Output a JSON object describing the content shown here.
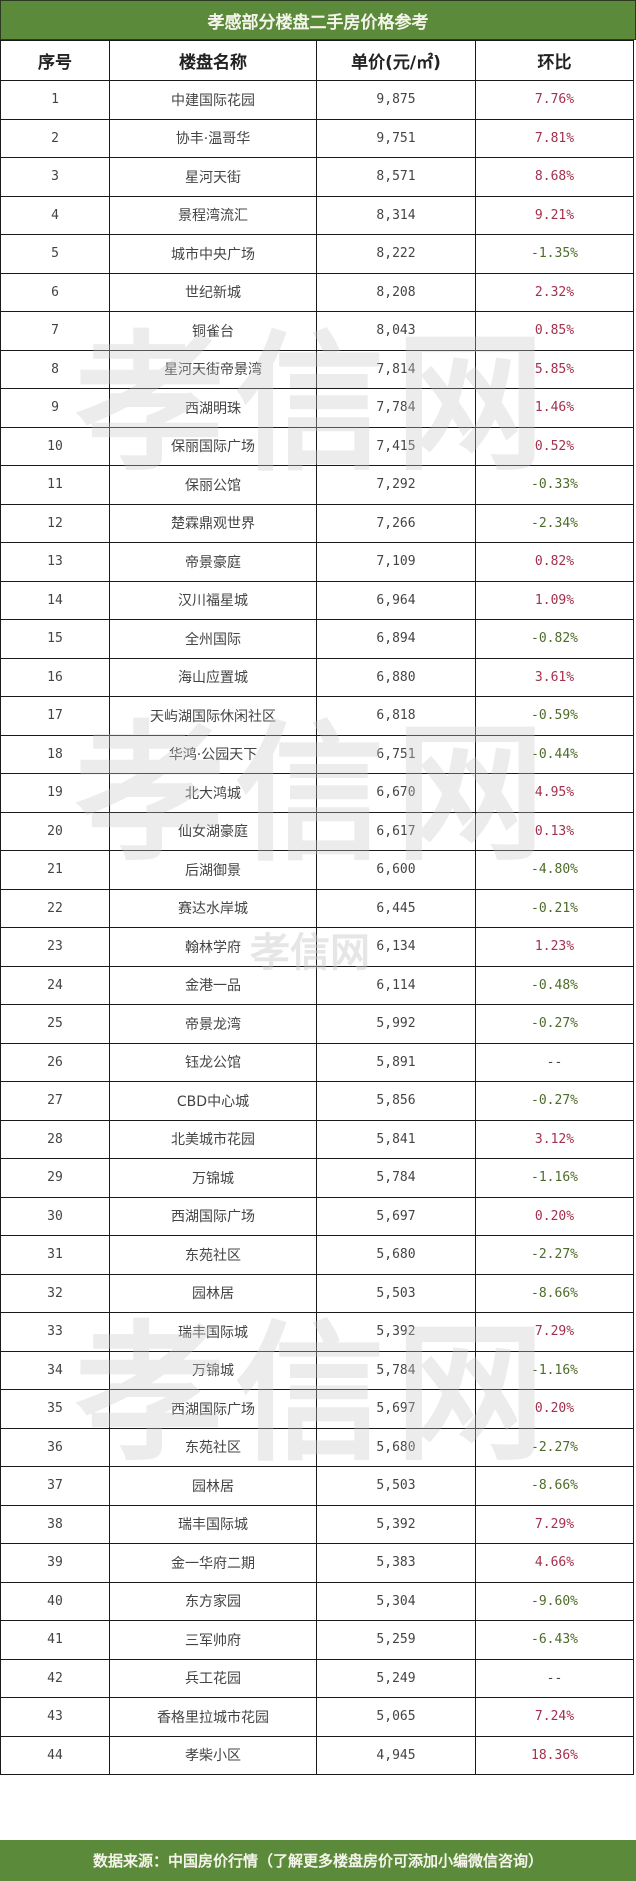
{
  "title": "孝感部分楼盘二手房价格参考",
  "columns": [
    "序号",
    "楼盘名称",
    "单价(元/㎡)",
    "环比"
  ],
  "colors": {
    "header_bg": "#5b8a3a",
    "positive": "#a3304c",
    "negative": "#4d6b28",
    "neutral": "#444444"
  },
  "watermark": "孝信网",
  "rows": [
    {
      "no": "1",
      "name": "中建国际花园",
      "price": "9,875",
      "change": "7.76%"
    },
    {
      "no": "2",
      "name": "协丰·温哥华",
      "price": "9,751",
      "change": "7.81%"
    },
    {
      "no": "3",
      "name": "星河天街",
      "price": "8,571",
      "change": "8.68%"
    },
    {
      "no": "4",
      "name": "景程湾流汇",
      "price": "8,314",
      "change": "9.21%"
    },
    {
      "no": "5",
      "name": "城市中央广场",
      "price": "8,222",
      "change": "-1.35%"
    },
    {
      "no": "6",
      "name": "世纪新城",
      "price": "8,208",
      "change": "2.32%"
    },
    {
      "no": "7",
      "name": "铜雀台",
      "price": "8,043",
      "change": "0.85%"
    },
    {
      "no": "8",
      "name": "星河天街帝景湾",
      "price": "7,814",
      "change": "5.85%"
    },
    {
      "no": "9",
      "name": "西湖明珠",
      "price": "7,784",
      "change": "1.46%"
    },
    {
      "no": "10",
      "name": "保丽国际广场",
      "price": "7,415",
      "change": "0.52%"
    },
    {
      "no": "11",
      "name": "保丽公馆",
      "price": "7,292",
      "change": "-0.33%"
    },
    {
      "no": "12",
      "name": "楚霖鼎观世界",
      "price": "7,266",
      "change": "-2.34%"
    },
    {
      "no": "13",
      "name": "帝景豪庭",
      "price": "7,109",
      "change": "0.82%"
    },
    {
      "no": "14",
      "name": "汉川福星城",
      "price": "6,964",
      "change": "1.09%"
    },
    {
      "no": "15",
      "name": "全州国际",
      "price": "6,894",
      "change": "-0.82%"
    },
    {
      "no": "16",
      "name": "海山应置城",
      "price": "6,880",
      "change": "3.61%"
    },
    {
      "no": "17",
      "name": "天屿湖国际休闲社区",
      "price": "6,818",
      "change": "-0.59%"
    },
    {
      "no": "18",
      "name": "华鸿·公园天下",
      "price": "6,751",
      "change": "-0.44%"
    },
    {
      "no": "19",
      "name": "北大鸿城",
      "price": "6,670",
      "change": "4.95%"
    },
    {
      "no": "20",
      "name": "仙女湖豪庭",
      "price": "6,617",
      "change": "0.13%"
    },
    {
      "no": "21",
      "name": "后湖御景",
      "price": "6,600",
      "change": "-4.80%"
    },
    {
      "no": "22",
      "name": "赛达水岸城",
      "price": "6,445",
      "change": "-0.21%"
    },
    {
      "no": "23",
      "name": "翰林学府",
      "price": "6,134",
      "change": "1.23%"
    },
    {
      "no": "24",
      "name": "金港一品",
      "price": "6,114",
      "change": "-0.48%"
    },
    {
      "no": "25",
      "name": "帝景龙湾",
      "price": "5,992",
      "change": "-0.27%"
    },
    {
      "no": "26",
      "name": "钰龙公馆",
      "price": "5,891",
      "change": "--"
    },
    {
      "no": "27",
      "name": "CBD中心城",
      "price": "5,856",
      "change": "-0.27%"
    },
    {
      "no": "28",
      "name": "北美城市花园",
      "price": "5,841",
      "change": "3.12%"
    },
    {
      "no": "29",
      "name": "万锦城",
      "price": "5,784",
      "change": "-1.16%"
    },
    {
      "no": "30",
      "name": "西湖国际广场",
      "price": "5,697",
      "change": "0.20%"
    },
    {
      "no": "31",
      "name": "东苑社区",
      "price": "5,680",
      "change": "-2.27%"
    },
    {
      "no": "32",
      "name": "园林居",
      "price": "5,503",
      "change": "-8.66%"
    },
    {
      "no": "33",
      "name": "瑞丰国际城",
      "price": "5,392",
      "change": "7.29%"
    },
    {
      "no": "34",
      "name": "万锦城",
      "price": "5,784",
      "change": "-1.16%"
    },
    {
      "no": "35",
      "name": "西湖国际广场",
      "price": "5,697",
      "change": "0.20%"
    },
    {
      "no": "36",
      "name": "东苑社区",
      "price": "5,680",
      "change": "-2.27%"
    },
    {
      "no": "37",
      "name": "园林居",
      "price": "5,503",
      "change": "-8.66%"
    },
    {
      "no": "38",
      "name": "瑞丰国际城",
      "price": "5,392",
      "change": "7.29%"
    },
    {
      "no": "39",
      "name": "金一华府二期",
      "price": "5,383",
      "change": "4.66%"
    },
    {
      "no": "40",
      "name": "东方家园",
      "price": "5,304",
      "change": "-9.60%"
    },
    {
      "no": "41",
      "name": "三军帅府",
      "price": "5,259",
      "change": "-6.43%"
    },
    {
      "no": "42",
      "name": "兵工花园",
      "price": "5,249",
      "change": "--"
    },
    {
      "no": "43",
      "name": "香格里拉城市花园",
      "price": "5,065",
      "change": "7.24%"
    },
    {
      "no": "44",
      "name": "孝柴小区",
      "price": "4,945",
      "change": "18.36%"
    }
  ],
  "footer": "数据来源：中国房价行情（了解更多楼盘房价可添加小编微信咨询）"
}
